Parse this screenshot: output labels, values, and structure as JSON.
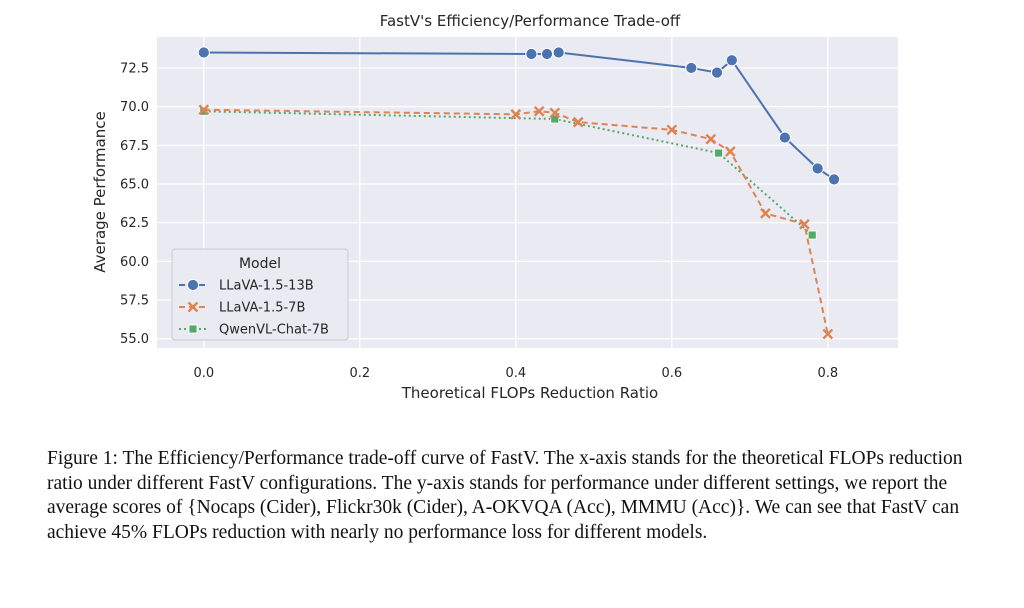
{
  "chart_data": {
    "type": "line",
    "title": "FastV's Efficiency/Performance Trade-off",
    "xlabel": "Theoretical FLOPs Reduction Ratio",
    "ylabel": "Average Performance",
    "xlim": [
      -0.06,
      0.89
    ],
    "ylim": [
      54.4,
      74.5
    ],
    "xticks": [
      0.0,
      0.2,
      0.4,
      0.6,
      0.8
    ],
    "xtick_labels": [
      "0.0",
      "0.2",
      "0.4",
      "0.6",
      "0.8"
    ],
    "yticks": [
      55.0,
      57.5,
      60.0,
      62.5,
      65.0,
      67.5,
      70.0,
      72.5
    ],
    "ytick_labels": [
      "55.0",
      "57.5",
      "60.0",
      "62.5",
      "65.0",
      "67.5",
      "70.0",
      "72.5"
    ],
    "grid": true,
    "background": "#eaeaf2",
    "legend": {
      "title": "Model",
      "placement": "lower-left"
    },
    "series": [
      {
        "name": "LLaVA-1.5-13B",
        "color": "#4c72b0",
        "marker": "circle",
        "linestyle": "dashed-solid",
        "x": [
          0.0,
          0.42,
          0.44,
          0.455,
          0.625,
          0.658,
          0.677,
          0.745,
          0.787,
          0.808
        ],
        "y": [
          73.5,
          73.4,
          73.4,
          73.5,
          72.5,
          72.2,
          73.0,
          68.0,
          66.0,
          65.3
        ]
      },
      {
        "name": "LLaVA-1.5-7B",
        "color": "#dd8452",
        "marker": "x",
        "linestyle": "dashed",
        "x": [
          0.0,
          0.4,
          0.43,
          0.45,
          0.48,
          0.6,
          0.65,
          0.675,
          0.72,
          0.77,
          0.8
        ],
        "y": [
          69.8,
          69.5,
          69.7,
          69.6,
          69.0,
          68.5,
          67.9,
          67.1,
          63.1,
          62.4,
          55.3
        ]
      },
      {
        "name": "QwenVL-Chat-7B",
        "color": "#55a868",
        "marker": "square",
        "linestyle": "dotted",
        "x": [
          0.0,
          0.45,
          0.66,
          0.78
        ],
        "y": [
          69.7,
          69.2,
          67.0,
          61.7
        ]
      }
    ]
  },
  "caption": "Figure 1: The Efficiency/Performance trade-off curve of FastV. The x-axis stands for the theoretical FLOPs reduction ratio under different FastV configurations. The y-axis stands for performance under different settings, we report the average scores of {Nocaps (Cider), Flickr30k (Cider), A-OKVQA (Acc), MMMU (Acc)}. We can see that FastV can achieve 45% FLOPs reduction with nearly no performance loss for different models."
}
